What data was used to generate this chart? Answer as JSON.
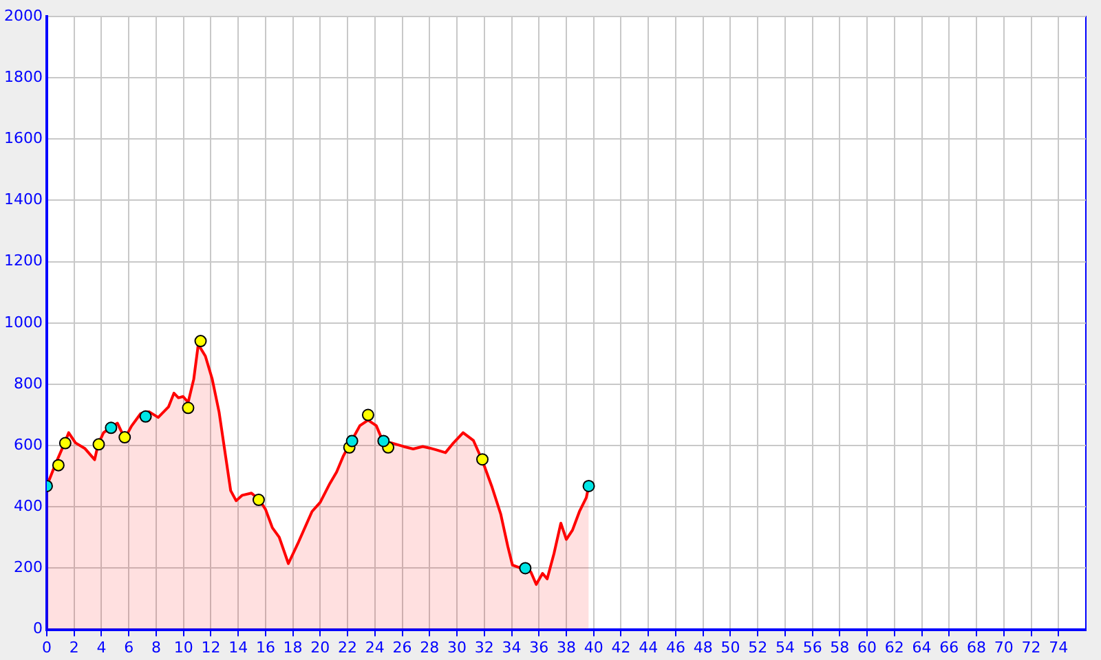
{
  "chart_data": {
    "type": "area",
    "xlim": [
      0,
      76
    ],
    "ylim": [
      0,
      2000
    ],
    "xticks": [
      0,
      2,
      4,
      6,
      8,
      10,
      12,
      14,
      16,
      18,
      20,
      22,
      24,
      26,
      28,
      30,
      32,
      34,
      36,
      38,
      40,
      42,
      44,
      46,
      48,
      50,
      52,
      54,
      56,
      58,
      60,
      62,
      64,
      66,
      68,
      70,
      72,
      74
    ],
    "yticks": [
      0,
      200,
      400,
      600,
      800,
      1000,
      1200,
      1400,
      1600,
      1800,
      2000
    ],
    "grid": true,
    "legend": false,
    "line_style": "solid",
    "series": [
      {
        "color": "#ff0000",
        "marker": "none",
        "x": [
          0,
          0.6,
          1.3,
          1.6,
          2.1,
          2.8,
          3.5,
          3.75,
          4.15,
          4.66,
          5.17,
          5.5,
          5.75,
          6.2,
          6.86,
          7.5,
          8.15,
          8.9,
          9.3,
          9.63,
          9.97,
          10.34,
          10.75,
          11.08,
          11.6,
          12.1,
          12.6,
          13.1,
          13.45,
          13.85,
          14.3,
          14.97,
          15.55,
          16,
          16.5,
          17,
          17.67,
          18.35,
          19.4,
          20,
          20.7,
          21.2,
          21.7,
          22.2,
          22.9,
          23.5,
          24.1,
          24.6,
          25.27,
          26.1,
          26.8,
          27.5,
          28,
          28.5,
          29.16,
          29.67,
          30.45,
          31.2,
          31.86,
          32.54,
          33.2,
          33.72,
          34.06,
          34.74,
          35.4,
          35.8,
          36.26,
          36.6,
          37.1,
          37.6,
          38,
          38.45,
          38.96,
          39.46,
          39.64
        ],
        "values": [
          468,
          536,
          608,
          642,
          609,
          590,
          554,
          604,
          642,
          659,
          673,
          642,
          627,
          664,
          704,
          710,
          692,
          726,
          771,
          756,
          760,
          741,
          817,
          930,
          892,
          817,
          710,
          559,
          453,
          420,
          438,
          445,
          423,
          392,
          332,
          301,
          215,
          279,
          385,
          415,
          476,
          514,
          567,
          608,
          665,
          683,
          665,
          612,
          608,
          597,
          589,
          597,
          592,
          586,
          577,
          605,
          642,
          617,
          551,
          468,
          377,
          271,
          210,
          199,
          188,
          147,
          183,
          165,
          248,
          347,
          294,
          324,
          385,
          430,
          468
        ]
      },
      {
        "type": "scatter",
        "color": "#ffff00",
        "marker": "circle",
        "x": [
          0.85,
          1.35,
          3.8,
          5.7,
          10.34,
          11.25,
          15.5,
          22.13,
          23.5,
          24.97,
          31.86
        ],
        "values": [
          536,
          608,
          604,
          627,
          723,
          941,
          423,
          594,
          700,
          594,
          555
        ]
      },
      {
        "type": "scatter",
        "color": "#00e5e5",
        "marker": "circle",
        "x": [
          0,
          4.7,
          7.23,
          22.33,
          24.63,
          35,
          39.64
        ],
        "values": [
          468,
          658,
          695,
          615,
          615,
          200,
          468
        ]
      }
    ]
  }
}
